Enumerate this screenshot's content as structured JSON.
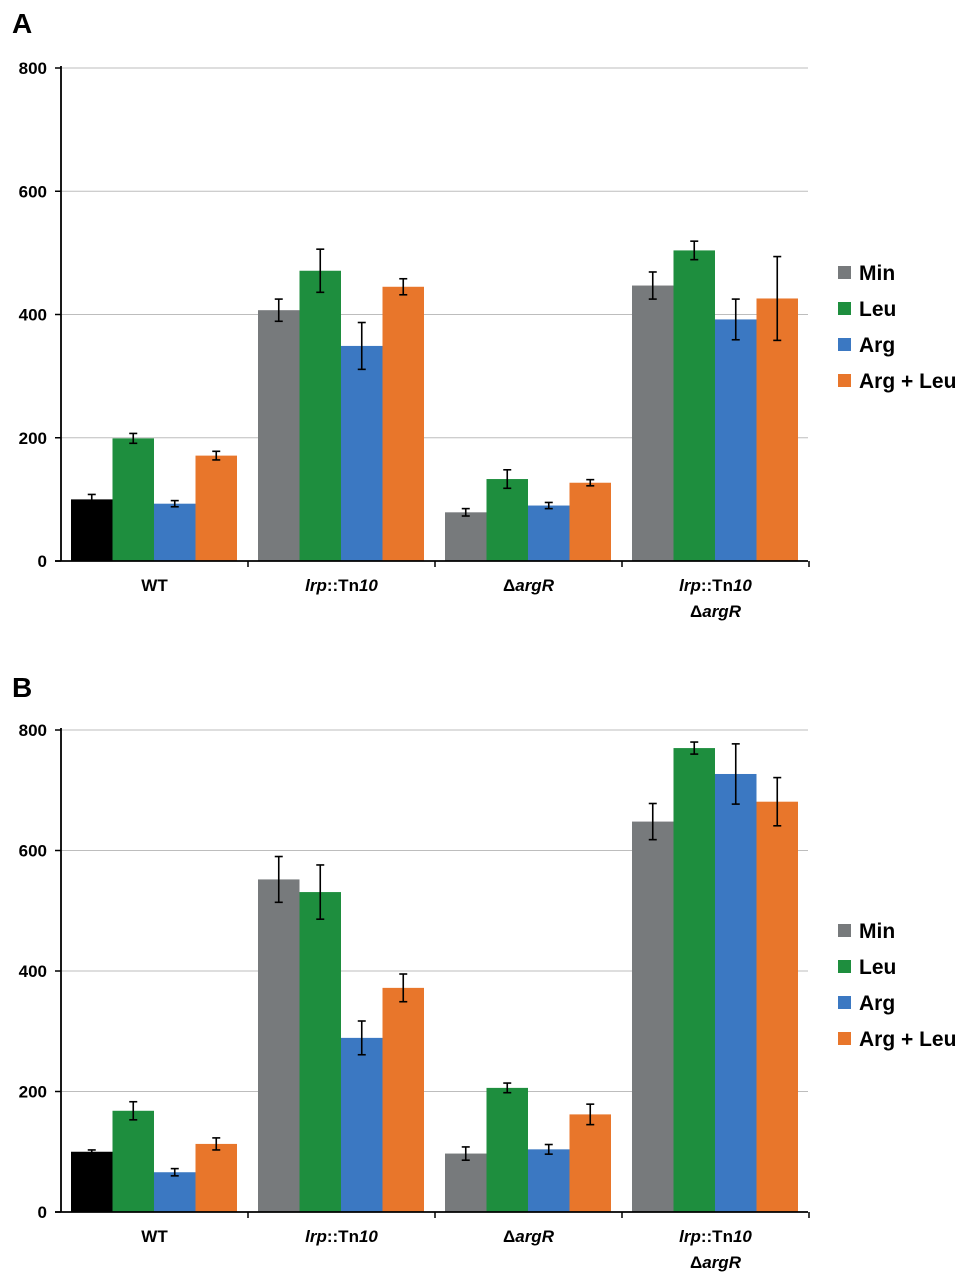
{
  "colors": {
    "wt_min": "#000000",
    "min": "#777a7c",
    "leu": "#1e8e3e",
    "arg": "#3b78c2",
    "argleu": "#e8762b",
    "grid": "#bdbdbd",
    "axis": "#000000"
  },
  "chart_data": [
    {
      "type": "bar",
      "panel_label": "A",
      "categories": [
        {
          "parts": [
            {
              "text": "WT",
              "italic": false
            }
          ]
        },
        {
          "parts": [
            {
              "text": "lrp",
              "italic": true
            },
            {
              "text": "::Tn",
              "italic": false
            },
            {
              "text": "10",
              "italic": true
            }
          ]
        },
        {
          "parts": [
            {
              "text": "Δ",
              "italic": false
            },
            {
              "text": "argR",
              "italic": true
            }
          ]
        },
        {
          "parts": [
            {
              "text": "lrp",
              "italic": true
            },
            {
              "text": "::Tn",
              "italic": false
            },
            {
              "text": "10",
              "italic": true
            }
          ],
          "line2": [
            {
              "text": "Δ",
              "italic": false
            },
            {
              "text": "argR",
              "italic": true
            }
          ]
        }
      ],
      "series": [
        {
          "name": "Min",
          "color_key": "min",
          "values": [
            100,
            407,
            79,
            447
          ],
          "errors": [
            8,
            18,
            6,
            22
          ]
        },
        {
          "name": "Leu",
          "color_key": "leu",
          "values": [
            199,
            471,
            133,
            504
          ],
          "errors": [
            8,
            35,
            15,
            15
          ]
        },
        {
          "name": "Arg",
          "color_key": "arg",
          "values": [
            93,
            349,
            90,
            392
          ],
          "errors": [
            5,
            38,
            5,
            33
          ]
        },
        {
          "name": "Arg + Leu",
          "color_key": "argleu",
          "values": [
            171,
            445,
            127,
            426
          ],
          "errors": [
            7,
            13,
            5,
            68
          ]
        }
      ],
      "first_bar_override": {
        "series": "Min",
        "category_index": 0,
        "color_key": "wt_min"
      },
      "ylim": [
        0,
        800
      ],
      "yticks": [
        0,
        200,
        400,
        600,
        800
      ],
      "grid": true,
      "legend_position": "right",
      "title": "",
      "xlabel": "",
      "ylabel": ""
    },
    {
      "type": "bar",
      "panel_label": "B",
      "categories": [
        {
          "parts": [
            {
              "text": "WT",
              "italic": false
            }
          ]
        },
        {
          "parts": [
            {
              "text": "lrp",
              "italic": true
            },
            {
              "text": "::Tn",
              "italic": false
            },
            {
              "text": "10",
              "italic": true
            }
          ]
        },
        {
          "parts": [
            {
              "text": "Δ",
              "italic": false
            },
            {
              "text": "argR",
              "italic": true
            }
          ]
        },
        {
          "parts": [
            {
              "text": "lrp",
              "italic": true
            },
            {
              "text": "::Tn",
              "italic": false
            },
            {
              "text": "10",
              "italic": true
            }
          ],
          "line2": [
            {
              "text": "Δ",
              "italic": false
            },
            {
              "text": "argR",
              "italic": true
            }
          ]
        }
      ],
      "series": [
        {
          "name": "Min",
          "color_key": "min",
          "values": [
            100,
            552,
            97,
            648
          ],
          "errors": [
            3,
            38,
            11,
            30
          ]
        },
        {
          "name": "Leu",
          "color_key": "leu",
          "values": [
            168,
            531,
            206,
            770
          ],
          "errors": [
            15,
            45,
            8,
            10
          ]
        },
        {
          "name": "Arg",
          "color_key": "arg",
          "values": [
            66,
            289,
            104,
            727
          ],
          "errors": [
            6,
            28,
            8,
            50
          ]
        },
        {
          "name": "Arg + Leu",
          "color_key": "argleu",
          "values": [
            113,
            372,
            162,
            681
          ],
          "errors": [
            10,
            23,
            17,
            40
          ]
        }
      ],
      "first_bar_override": {
        "series": "Min",
        "category_index": 0,
        "color_key": "wt_min"
      },
      "ylim": [
        0,
        800
      ],
      "yticks": [
        0,
        200,
        400,
        600,
        800
      ],
      "grid": true,
      "legend_position": "right",
      "title": "",
      "xlabel": "",
      "ylabel": ""
    }
  ]
}
